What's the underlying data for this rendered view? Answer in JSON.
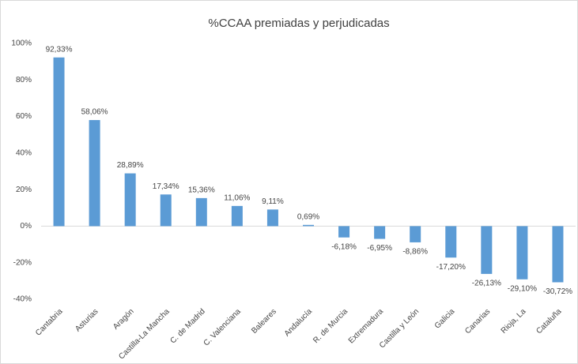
{
  "chart_data": {
    "type": "bar",
    "title": "%CCAA premiadas y perjudicadas",
    "categories": [
      "Cantabria",
      "Asturias",
      "Aragón",
      "Castilla-La Mancha",
      "C. de Madrid",
      "C. Valenciana",
      "Baleares",
      "Andalucía",
      "R. de Murcia",
      "Extremadura",
      "Castilla y León",
      "Galicia",
      "Canarias",
      "Rioja, La",
      "Cataluña"
    ],
    "values": [
      92.33,
      58.06,
      28.89,
      17.34,
      15.36,
      11.06,
      9.11,
      0.69,
      -6.18,
      -6.95,
      -8.86,
      -17.2,
      -26.13,
      -29.1,
      -30.72
    ],
    "value_labels": [
      "92,33%",
      "58,06%",
      "28,89%",
      "17,34%",
      "15,36%",
      "11,06%",
      "9,11%",
      "0,69%",
      "-6,18%",
      "-6,95%",
      "-8,86%",
      "-17,20%",
      "-26,13%",
      "-29,10%",
      "-30,72%"
    ],
    "color": "#5b9bd5",
    "ylim": [
      -40,
      100
    ],
    "yticks": [
      {
        "value": -40,
        "label": "-40%"
      },
      {
        "value": -20,
        "label": "-20%"
      },
      {
        "value": 0,
        "label": "0%"
      },
      {
        "value": 20,
        "label": "20%"
      },
      {
        "value": 40,
        "label": "40%"
      },
      {
        "value": 60,
        "label": "60%"
      },
      {
        "value": 80,
        "label": "80%"
      },
      {
        "value": 100,
        "label": "100%"
      }
    ],
    "grid": false
  }
}
